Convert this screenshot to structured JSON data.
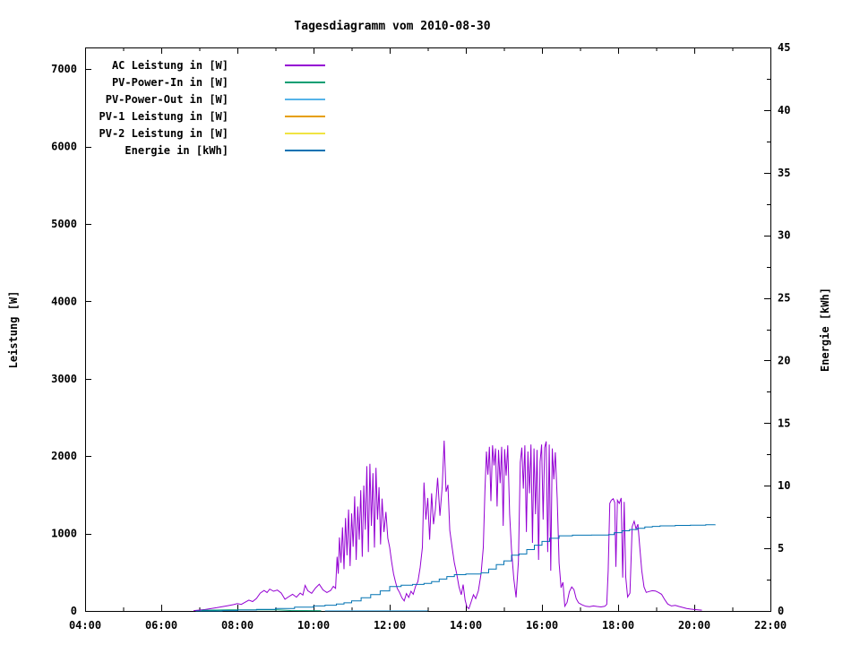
{
  "title": "Tagesdiagramm vom 2010-08-30",
  "legend": {
    "items": [
      {
        "label": "AC Leistung in [W]",
        "color": "#9400d3"
      },
      {
        "label": "PV-Power-In in [W]",
        "color": "#009e73"
      },
      {
        "label": "PV-Power-Out in [W]",
        "color": "#56b4e9"
      },
      {
        "label": "PV-1 Leistung in [W]",
        "color": "#e69f00"
      },
      {
        "label": "PV-2 Leistung in [W]",
        "color": "#f0e442"
      },
      {
        "label": "Energie in [kWh]",
        "color": "#0072b2"
      }
    ]
  },
  "chart_data": {
    "type": "line",
    "title": "Tagesdiagramm vom 2010-08-30",
    "grid": false,
    "legend_position": "top-left-inside",
    "x_axis": {
      "range_h": [
        4,
        22
      ],
      "tick_hours": [
        4,
        5,
        6,
        7,
        8,
        9,
        10,
        11,
        12,
        13,
        14,
        15,
        16,
        17,
        18,
        19,
        20,
        21,
        22
      ],
      "major_tick_hours": [
        4,
        6,
        8,
        10,
        12,
        14,
        16,
        18,
        20,
        22
      ],
      "tick_labels": [
        "04:00",
        "06:00",
        "08:00",
        "10:00",
        "12:00",
        "14:00",
        "16:00",
        "18:00",
        "20:00",
        "22:00"
      ]
    },
    "y1_axis": {
      "label": "Leistung [W]",
      "range": [
        0,
        7280
      ],
      "tick_values": [
        0,
        1000,
        2000,
        3000,
        4000,
        5000,
        6000,
        7000
      ],
      "tick_labels": [
        "0",
        "1000",
        "2000",
        "3000",
        "4000",
        "5000",
        "6000",
        "7000"
      ]
    },
    "y2_axis": {
      "label": "Energie [kWh]",
      "range": [
        0,
        45
      ],
      "tick_values": [
        0,
        5,
        10,
        15,
        20,
        25,
        30,
        35,
        40,
        45
      ],
      "minor_step": 2.5,
      "tick_labels": [
        "0",
        "5",
        "10",
        "15",
        "20",
        "25",
        "30",
        "35",
        "40",
        "45"
      ]
    },
    "series": [
      {
        "name": "AC Leistung in [W]",
        "color": "#9400d3",
        "axis": "y1",
        "step": false,
        "points": [
          [
            6.85,
            5
          ],
          [
            7.0,
            12
          ],
          [
            7.15,
            18
          ],
          [
            7.3,
            30
          ],
          [
            7.45,
            42
          ],
          [
            7.6,
            55
          ],
          [
            7.75,
            68
          ],
          [
            7.9,
            82
          ],
          [
            8.0,
            95
          ],
          [
            8.1,
            85
          ],
          [
            8.2,
            112
          ],
          [
            8.3,
            140
          ],
          [
            8.4,
            122
          ],
          [
            8.5,
            162
          ],
          [
            8.6,
            230
          ],
          [
            8.7,
            265
          ],
          [
            8.78,
            238
          ],
          [
            8.85,
            282
          ],
          [
            8.95,
            255
          ],
          [
            9.05,
            270
          ],
          [
            9.15,
            232
          ],
          [
            9.25,
            152
          ],
          [
            9.35,
            185
          ],
          [
            9.45,
            215
          ],
          [
            9.55,
            178
          ],
          [
            9.65,
            232
          ],
          [
            9.72,
            205
          ],
          [
            9.78,
            330
          ],
          [
            9.85,
            262
          ],
          [
            9.95,
            228
          ],
          [
            10.05,
            295
          ],
          [
            10.15,
            345
          ],
          [
            10.25,
            272
          ],
          [
            10.35,
            238
          ],
          [
            10.45,
            265
          ],
          [
            10.52,
            318
          ],
          [
            10.58,
            292
          ],
          [
            10.62,
            700
          ],
          [
            10.65,
            480
          ],
          [
            10.68,
            950
          ],
          [
            10.72,
            620
          ],
          [
            10.76,
            1080
          ],
          [
            10.8,
            540
          ],
          [
            10.84,
            1200
          ],
          [
            10.88,
            720
          ],
          [
            10.92,
            1310
          ],
          [
            10.96,
            580
          ],
          [
            11.0,
            1260
          ],
          [
            11.04,
            830
          ],
          [
            11.08,
            1480
          ],
          [
            11.12,
            660
          ],
          [
            11.16,
            1350
          ],
          [
            11.2,
            920
          ],
          [
            11.24,
            1560
          ],
          [
            11.28,
            700
          ],
          [
            11.32,
            1620
          ],
          [
            11.36,
            1050
          ],
          [
            11.4,
            1870
          ],
          [
            11.44,
            760
          ],
          [
            11.48,
            1900
          ],
          [
            11.52,
            1100
          ],
          [
            11.56,
            1780
          ],
          [
            11.6,
            820
          ],
          [
            11.64,
            1850
          ],
          [
            11.68,
            1180
          ],
          [
            11.72,
            1600
          ],
          [
            11.76,
            860
          ],
          [
            11.8,
            1450
          ],
          [
            11.85,
            1020
          ],
          [
            11.9,
            1280
          ],
          [
            11.95,
            940
          ],
          [
            12.0,
            820
          ],
          [
            12.05,
            640
          ],
          [
            12.1,
            480
          ],
          [
            12.15,
            380
          ],
          [
            12.2,
            290
          ],
          [
            12.26,
            240
          ],
          [
            12.32,
            170
          ],
          [
            12.38,
            130
          ],
          [
            12.44,
            225
          ],
          [
            12.5,
            175
          ],
          [
            12.56,
            255
          ],
          [
            12.62,
            215
          ],
          [
            12.68,
            320
          ],
          [
            12.74,
            380
          ],
          [
            12.8,
            560
          ],
          [
            12.86,
            820
          ],
          [
            12.9,
            1660
          ],
          [
            12.95,
            1180
          ],
          [
            13.0,
            1460
          ],
          [
            13.05,
            920
          ],
          [
            13.1,
            1520
          ],
          [
            13.15,
            1120
          ],
          [
            13.2,
            1310
          ],
          [
            13.26,
            1720
          ],
          [
            13.32,
            1230
          ],
          [
            13.38,
            1620
          ],
          [
            13.43,
            2200
          ],
          [
            13.48,
            1540
          ],
          [
            13.53,
            1630
          ],
          [
            13.58,
            1040
          ],
          [
            13.64,
            820
          ],
          [
            13.7,
            620
          ],
          [
            13.76,
            480
          ],
          [
            13.82,
            310
          ],
          [
            13.88,
            210
          ],
          [
            13.93,
            340
          ],
          [
            13.98,
            140
          ],
          [
            14.03,
            50
          ],
          [
            14.08,
            30
          ],
          [
            14.14,
            120
          ],
          [
            14.2,
            210
          ],
          [
            14.26,
            160
          ],
          [
            14.33,
            260
          ],
          [
            14.4,
            480
          ],
          [
            14.46,
            820
          ],
          [
            14.5,
            1550
          ],
          [
            14.54,
            2060
          ],
          [
            14.58,
            1760
          ],
          [
            14.62,
            2120
          ],
          [
            14.66,
            1420
          ],
          [
            14.7,
            2140
          ],
          [
            14.74,
            1880
          ],
          [
            14.78,
            2100
          ],
          [
            14.82,
            1350
          ],
          [
            14.86,
            2080
          ],
          [
            14.9,
            1650
          ],
          [
            14.94,
            2120
          ],
          [
            14.98,
            1100
          ],
          [
            15.02,
            2090
          ],
          [
            15.06,
            1750
          ],
          [
            15.1,
            2140
          ],
          [
            15.15,
            1250
          ],
          [
            15.2,
            790
          ],
          [
            15.26,
            420
          ],
          [
            15.32,
            175
          ],
          [
            15.38,
            640
          ],
          [
            15.43,
            1920
          ],
          [
            15.47,
            2110
          ],
          [
            15.51,
            1580
          ],
          [
            15.55,
            2140
          ],
          [
            15.59,
            1020
          ],
          [
            15.63,
            2060
          ],
          [
            15.67,
            1520
          ],
          [
            15.71,
            2150
          ],
          [
            15.75,
            880
          ],
          [
            15.79,
            2100
          ],
          [
            15.83,
            1250
          ],
          [
            15.87,
            2080
          ],
          [
            15.91,
            660
          ],
          [
            15.95,
            1930
          ],
          [
            15.99,
            2150
          ],
          [
            16.03,
            1180
          ],
          [
            16.07,
            2110
          ],
          [
            16.11,
            2190
          ],
          [
            16.15,
            760
          ],
          [
            16.19,
            2150
          ],
          [
            16.23,
            520
          ],
          [
            16.27,
            2100
          ],
          [
            16.31,
            1700
          ],
          [
            16.35,
            2050
          ],
          [
            16.4,
            1450
          ],
          [
            16.45,
            620
          ],
          [
            16.5,
            300
          ],
          [
            16.55,
            370
          ],
          [
            16.6,
            60
          ],
          [
            16.66,
            110
          ],
          [
            16.72,
            250
          ],
          [
            16.78,
            310
          ],
          [
            16.84,
            275
          ],
          [
            16.9,
            160
          ],
          [
            16.96,
            105
          ],
          [
            17.05,
            80
          ],
          [
            17.15,
            60
          ],
          [
            17.25,
            55
          ],
          [
            17.35,
            65
          ],
          [
            17.45,
            58
          ],
          [
            17.55,
            52
          ],
          [
            17.65,
            60
          ],
          [
            17.7,
            85
          ],
          [
            17.74,
            520
          ],
          [
            17.78,
            1390
          ],
          [
            17.82,
            1430
          ],
          [
            17.87,
            1450
          ],
          [
            17.91,
            1400
          ],
          [
            17.94,
            570
          ],
          [
            17.98,
            1430
          ],
          [
            18.03,
            1390
          ],
          [
            18.08,
            1460
          ],
          [
            18.12,
            430
          ],
          [
            18.16,
            1410
          ],
          [
            18.2,
            440
          ],
          [
            18.25,
            180
          ],
          [
            18.31,
            230
          ],
          [
            18.37,
            1090
          ],
          [
            18.42,
            1160
          ],
          [
            18.47,
            1060
          ],
          [
            18.52,
            1120
          ],
          [
            18.57,
            820
          ],
          [
            18.62,
            520
          ],
          [
            18.68,
            310
          ],
          [
            18.74,
            240
          ],
          [
            18.82,
            252
          ],
          [
            18.9,
            262
          ],
          [
            18.98,
            258
          ],
          [
            19.06,
            240
          ],
          [
            19.14,
            215
          ],
          [
            19.22,
            150
          ],
          [
            19.3,
            90
          ],
          [
            19.4,
            65
          ],
          [
            19.5,
            72
          ],
          [
            19.6,
            58
          ],
          [
            19.7,
            45
          ],
          [
            19.8,
            32
          ],
          [
            19.9,
            24
          ],
          [
            20.0,
            18
          ],
          [
            20.1,
            14
          ],
          [
            20.2,
            10
          ]
        ]
      },
      {
        "name": "PV-Power-In in [W]",
        "color": "#009e73",
        "axis": "y1",
        "step": false,
        "points": [
          [
            7.05,
            8
          ],
          [
            7.8,
            15
          ],
          [
            9.05,
            15
          ],
          [
            9.4,
            6
          ],
          [
            10.2,
            4
          ]
        ]
      },
      {
        "name": "PV-Power-Out in [W]",
        "color": "#56b4e9",
        "axis": "y1",
        "step": false,
        "points": [
          [
            10.3,
            2
          ],
          [
            13.0,
            2
          ]
        ]
      },
      {
        "name": "PV-1 Leistung in [W]",
        "color": "#e69f00",
        "axis": "y1",
        "step": false,
        "points": []
      },
      {
        "name": "PV-2 Leistung in [W]",
        "color": "#f0e442",
        "axis": "y1",
        "step": false,
        "points": []
      },
      {
        "name": "Energie in [kWh]",
        "color": "#0072b2",
        "axis": "y2",
        "step": true,
        "points": [
          [
            6.9,
            0
          ],
          [
            7.6,
            0.03
          ],
          [
            8.0,
            0.07
          ],
          [
            8.5,
            0.13
          ],
          [
            9.0,
            0.2
          ],
          [
            9.5,
            0.3
          ],
          [
            10.0,
            0.4
          ],
          [
            10.3,
            0.46
          ],
          [
            10.6,
            0.55
          ],
          [
            10.8,
            0.65
          ],
          [
            11.0,
            0.8
          ],
          [
            11.25,
            1.05
          ],
          [
            11.5,
            1.3
          ],
          [
            11.75,
            1.6
          ],
          [
            12.0,
            1.95
          ],
          [
            12.3,
            2.05
          ],
          [
            12.6,
            2.12
          ],
          [
            12.9,
            2.2
          ],
          [
            13.1,
            2.35
          ],
          [
            13.3,
            2.55
          ],
          [
            13.5,
            2.75
          ],
          [
            13.7,
            2.9
          ],
          [
            14.0,
            2.95
          ],
          [
            14.4,
            3.05
          ],
          [
            14.6,
            3.35
          ],
          [
            14.8,
            3.7
          ],
          [
            15.0,
            4.0
          ],
          [
            15.2,
            4.45
          ],
          [
            15.4,
            4.55
          ],
          [
            15.6,
            4.9
          ],
          [
            15.8,
            5.25
          ],
          [
            16.0,
            5.55
          ],
          [
            16.2,
            5.8
          ],
          [
            16.45,
            6.0
          ],
          [
            16.8,
            6.05
          ],
          [
            17.3,
            6.07
          ],
          [
            17.75,
            6.1
          ],
          [
            17.9,
            6.25
          ],
          [
            18.1,
            6.4
          ],
          [
            18.3,
            6.5
          ],
          [
            18.5,
            6.6
          ],
          [
            18.7,
            6.7
          ],
          [
            18.9,
            6.75
          ],
          [
            19.1,
            6.8
          ],
          [
            19.5,
            6.83
          ],
          [
            19.9,
            6.85
          ],
          [
            20.3,
            6.88
          ],
          [
            20.55,
            6.9
          ]
        ]
      }
    ]
  }
}
